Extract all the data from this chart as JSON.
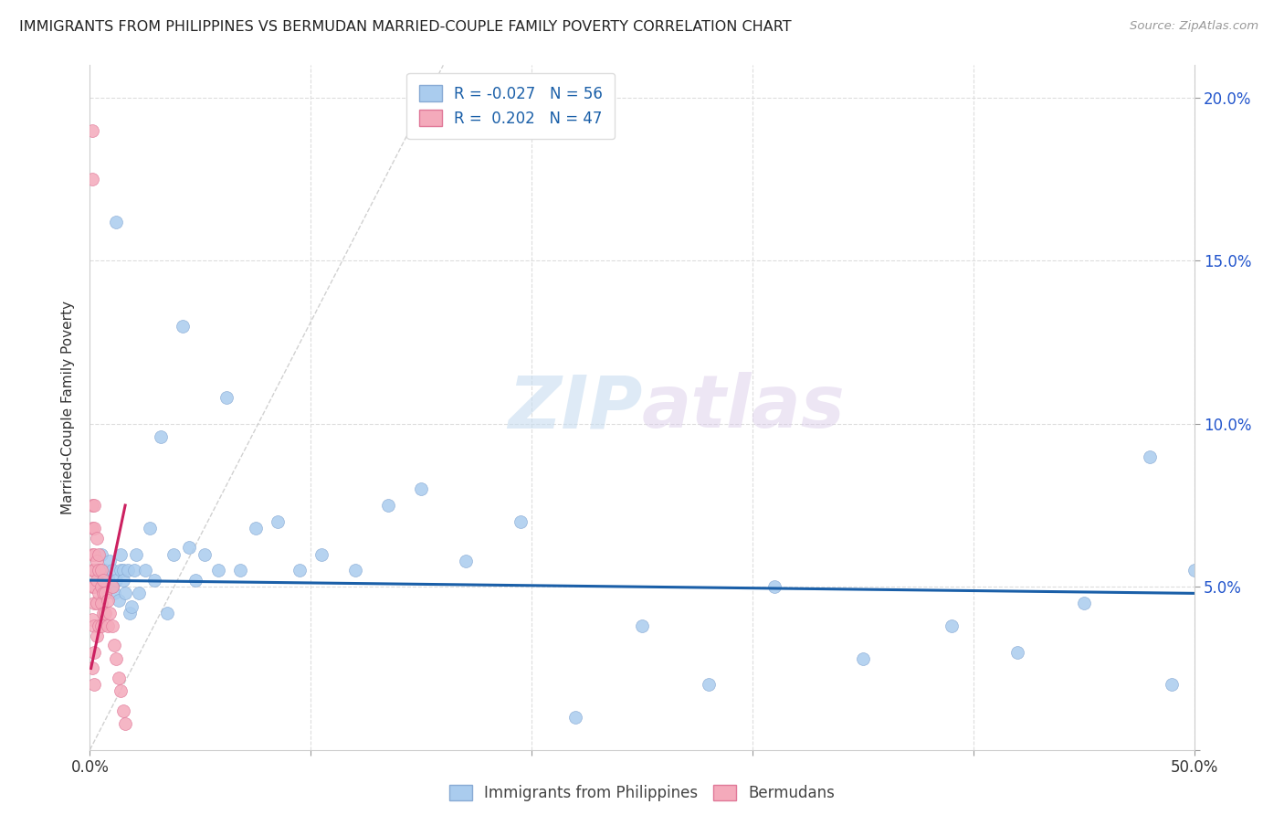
{
  "title": "IMMIGRANTS FROM PHILIPPINES VS BERMUDAN MARRIED-COUPLE FAMILY POVERTY CORRELATION CHART",
  "source": "Source: ZipAtlas.com",
  "ylabel": "Married-Couple Family Poverty",
  "xlim": [
    0.0,
    0.5
  ],
  "ylim": [
    0.0,
    0.21
  ],
  "watermark": "ZIPatlas",
  "blue_scatter_x": [
    0.003,
    0.005,
    0.006,
    0.007,
    0.008,
    0.009,
    0.01,
    0.01,
    0.011,
    0.012,
    0.012,
    0.013,
    0.014,
    0.014,
    0.015,
    0.015,
    0.016,
    0.017,
    0.018,
    0.019,
    0.02,
    0.021,
    0.022,
    0.025,
    0.027,
    0.029,
    0.032,
    0.035,
    0.038,
    0.042,
    0.045,
    0.048,
    0.052,
    0.058,
    0.062,
    0.068,
    0.075,
    0.085,
    0.095,
    0.105,
    0.12,
    0.135,
    0.15,
    0.17,
    0.195,
    0.22,
    0.25,
    0.28,
    0.31,
    0.35,
    0.39,
    0.42,
    0.45,
    0.48,
    0.49,
    0.5
  ],
  "blue_scatter_y": [
    0.055,
    0.06,
    0.05,
    0.055,
    0.053,
    0.058,
    0.055,
    0.05,
    0.048,
    0.162,
    0.052,
    0.046,
    0.055,
    0.06,
    0.055,
    0.052,
    0.048,
    0.055,
    0.042,
    0.044,
    0.055,
    0.06,
    0.048,
    0.055,
    0.068,
    0.052,
    0.096,
    0.042,
    0.06,
    0.13,
    0.062,
    0.052,
    0.06,
    0.055,
    0.108,
    0.055,
    0.068,
    0.07,
    0.055,
    0.06,
    0.055,
    0.075,
    0.08,
    0.058,
    0.07,
    0.01,
    0.038,
    0.02,
    0.05,
    0.028,
    0.038,
    0.03,
    0.045,
    0.09,
    0.02,
    0.055
  ],
  "pink_scatter_x": [
    0.001,
    0.001,
    0.001,
    0.001,
    0.001,
    0.001,
    0.001,
    0.001,
    0.001,
    0.002,
    0.002,
    0.002,
    0.002,
    0.002,
    0.002,
    0.002,
    0.002,
    0.002,
    0.003,
    0.003,
    0.003,
    0.003,
    0.003,
    0.004,
    0.004,
    0.004,
    0.004,
    0.005,
    0.005,
    0.005,
    0.005,
    0.006,
    0.006,
    0.006,
    0.007,
    0.007,
    0.008,
    0.008,
    0.009,
    0.01,
    0.01,
    0.011,
    0.012,
    0.013,
    0.014,
    0.015,
    0.016
  ],
  "pink_scatter_y": [
    0.19,
    0.175,
    0.075,
    0.068,
    0.06,
    0.055,
    0.05,
    0.04,
    0.025,
    0.075,
    0.068,
    0.06,
    0.055,
    0.05,
    0.045,
    0.038,
    0.03,
    0.02,
    0.065,
    0.058,
    0.052,
    0.045,
    0.035,
    0.06,
    0.055,
    0.048,
    0.038,
    0.055,
    0.05,
    0.045,
    0.038,
    0.052,
    0.048,
    0.042,
    0.048,
    0.042,
    0.046,
    0.038,
    0.042,
    0.05,
    0.038,
    0.032,
    0.028,
    0.022,
    0.018,
    0.012,
    0.008
  ],
  "blue_line_x": [
    0.0,
    0.5
  ],
  "blue_line_y": [
    0.052,
    0.048
  ],
  "pink_line_x": [
    0.0005,
    0.016
  ],
  "pink_line_y": [
    0.025,
    0.075
  ],
  "grey_dashed_line_x": [
    0.0,
    0.16
  ],
  "grey_dashed_line_y": [
    0.0,
    0.21
  ],
  "yticks": [
    0.0,
    0.05,
    0.1,
    0.15,
    0.2
  ],
  "ytick_labels_right": [
    "",
    "5.0%",
    "10.0%",
    "15.0%",
    "20.0%"
  ],
  "xtick_positions": [
    0.0,
    0.1,
    0.2,
    0.3,
    0.4,
    0.5
  ],
  "xtick_labels": [
    "0.0%",
    "",
    "",
    "",
    "",
    "50.0%"
  ]
}
